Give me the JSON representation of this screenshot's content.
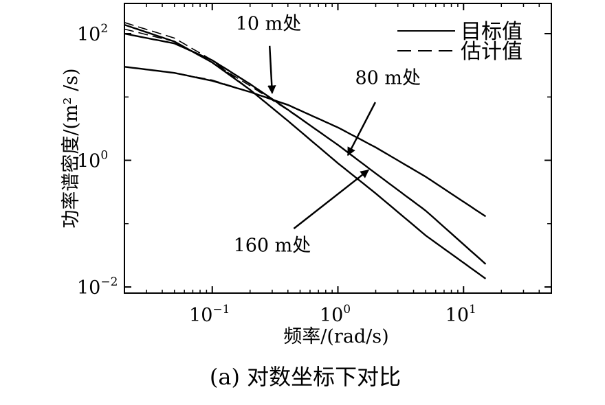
{
  "chart_data": {
    "type": "line",
    "xscale": "log",
    "yscale": "log",
    "xlim": [
      0.02,
      50
    ],
    "ylim": [
      0.008,
      300
    ],
    "grid": false,
    "xlabel": "频率/(rad/s)",
    "ylabel": "功率谱密度/(m² /s)",
    "caption": "(a)  对数坐标下对比",
    "xticks": [
      {
        "value": 0.1,
        "base": "10",
        "exp": "−1"
      },
      {
        "value": 1,
        "base": "10",
        "exp": "0"
      },
      {
        "value": 10,
        "base": "10",
        "exp": "1"
      }
    ],
    "yticks": [
      {
        "value": 0.01,
        "base": "10",
        "exp": "−2"
      },
      {
        "value": 1,
        "base": "10",
        "exp": "0"
      },
      {
        "value": 100,
        "base": "10",
        "exp": "2"
      }
    ],
    "legend": {
      "position": "top-right",
      "entries": [
        {
          "label": "目标值",
          "style": "solid"
        },
        {
          "label": "估计值",
          "style": "dashed"
        }
      ]
    },
    "series": [
      {
        "group": "10 m处",
        "style": "solid",
        "x": [
          0.02,
          0.05,
          0.1,
          0.2,
          0.4,
          1,
          2,
          5,
          15
        ],
        "y": [
          30,
          24,
          18,
          12,
          7.5,
          3.3,
          1.6,
          0.55,
          0.13
        ]
      },
      {
        "group": "10 m处",
        "style": "dashed",
        "x": [
          0.02,
          0.05,
          0.1,
          0.2,
          0.4,
          1,
          2,
          5,
          15
        ],
        "y": [
          30,
          24,
          18.5,
          12,
          7.4,
          3.3,
          1.6,
          0.55,
          0.13
        ]
      },
      {
        "group": "80 m处",
        "style": "solid",
        "x": [
          0.02,
          0.05,
          0.1,
          0.2,
          0.4,
          1,
          2,
          5,
          15
        ],
        "y": [
          100,
          70,
          38,
          16,
          6.3,
          1.75,
          0.62,
          0.16,
          0.023
        ]
      },
      {
        "group": "80 m处",
        "style": "dashed",
        "x": [
          0.02,
          0.05,
          0.1,
          0.2,
          0.4,
          1,
          2,
          5,
          15
        ],
        "y": [
          118,
          75,
          35,
          15,
          6.2,
          1.75,
          0.62,
          0.16,
          0.023
        ]
      },
      {
        "group": "160 m处",
        "style": "solid",
        "x": [
          0.02,
          0.05,
          0.1,
          0.2,
          0.4,
          1,
          2,
          5,
          15
        ],
        "y": [
          138,
          75,
          35,
          13,
          4.2,
          0.9,
          0.3,
          0.065,
          0.0135
        ]
      },
      {
        "group": "160 m处",
        "style": "dashed",
        "x": [
          0.02,
          0.05,
          0.1,
          0.2,
          0.4,
          1,
          2,
          5,
          15
        ],
        "y": [
          150,
          85,
          38,
          13,
          4.2,
          0.9,
          0.3,
          0.065,
          0.0135
        ]
      }
    ],
    "annotations": [
      {
        "text": "10 m处",
        "text_at": [
          0.28,
          115
        ],
        "arrow_to": [
          0.3,
          11.5
        ]
      },
      {
        "text": "80 m处",
        "text_at": [
          2.5,
          16
        ],
        "arrow_to": [
          1.2,
          1.2
        ]
      },
      {
        "text": "160 m处",
        "text_at": [
          0.3,
          0.036
        ],
        "arrow_to": [
          1.75,
          0.7
        ]
      }
    ]
  }
}
